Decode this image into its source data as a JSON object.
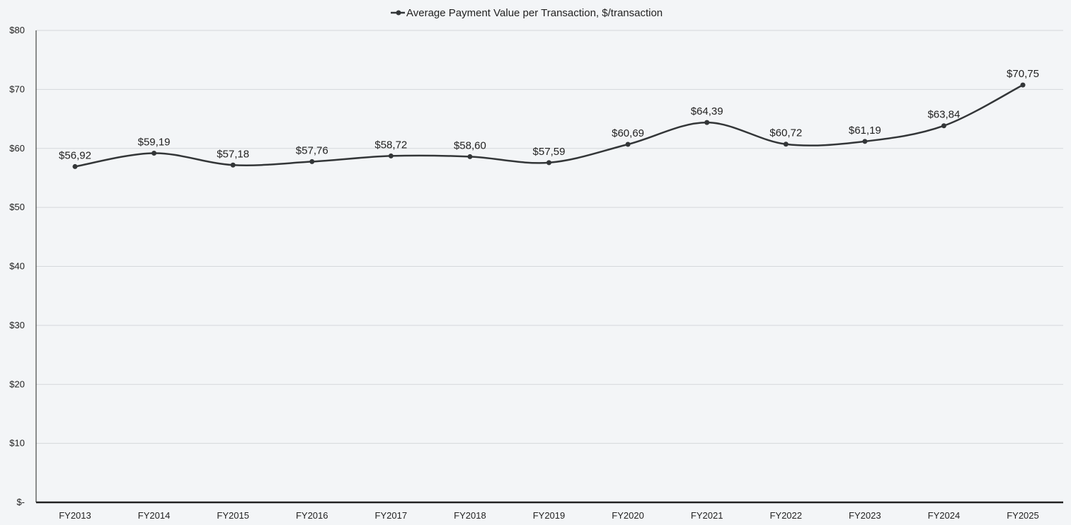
{
  "chart_data": {
    "type": "line",
    "title": "",
    "xlabel": "",
    "ylabel": "",
    "categories": [
      "FY2013",
      "FY2014",
      "FY2015",
      "FY2016",
      "FY2017",
      "FY2018",
      "FY2019",
      "FY2020",
      "FY2021",
      "FY2022",
      "FY2023",
      "FY2024",
      "FY2025"
    ],
    "series": [
      {
        "name": "Average Payment Value per Transaction, $/transaction",
        "values": [
          56.92,
          59.19,
          57.18,
          57.76,
          58.72,
          58.6,
          57.59,
          60.69,
          64.39,
          60.72,
          61.19,
          63.84,
          70.75
        ],
        "labels": [
          "$56,92",
          "$59,19",
          "$57,18",
          "$57,76",
          "$58,72",
          "$58,60",
          "$57,59",
          "$60,69",
          "$64,39",
          "$60,72",
          "$61,19",
          "$63,84",
          "$70,75"
        ]
      }
    ],
    "ylim": [
      0,
      80
    ],
    "y_ticks": [
      0,
      10,
      20,
      30,
      40,
      50,
      60,
      70,
      80
    ],
    "y_tick_labels": [
      "$-",
      "$10",
      "$20",
      "$30",
      "$40",
      "$50",
      "$60",
      "$70",
      "$80"
    ],
    "grid": true,
    "smooth": true,
    "legend": "top-center",
    "colors": {
      "background": "#f3f5f7",
      "line": "#333638",
      "gridline": "#d5d8db",
      "axis": "#222222"
    }
  }
}
